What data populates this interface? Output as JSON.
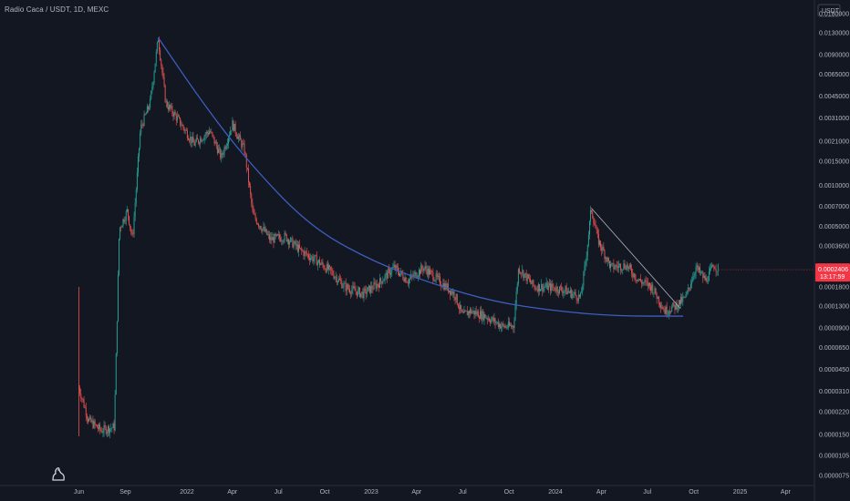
{
  "header": {
    "symbol_title": "Radio Caca / USDT, 1D, MEXC"
  },
  "price_axis": {
    "currency": "USDT",
    "current_price": "0.0002406",
    "countdown": "13:17:59"
  },
  "colors": {
    "background": "#131722",
    "up": "#26a69a",
    "down": "#ef5350",
    "price_tag": "#f23645",
    "curve": "#3d5fbf",
    "trendline": "#b2b5be"
  },
  "chart_data": {
    "type": "candlestick",
    "scale": "log",
    "y_ticks": [
      "0.0180000",
      "0.0130000",
      "0.0090000",
      "0.0065000",
      "0.0045000",
      "0.0031000",
      "0.0021000",
      "0.0015000",
      "0.0010000",
      "0.0007000",
      "0.0005000",
      "0.0003600",
      "0.0002406",
      "0.0001800",
      "0.0001300",
      "0.0000900",
      "0.0000650",
      "0.0000450",
      "0.0000310",
      "0.0000220",
      "0.0000150",
      "0.0000105",
      "0.0000075"
    ],
    "x_ticks": [
      "Jun",
      "Sep",
      "2022",
      "Apr",
      "Jul",
      "Oct",
      "2023",
      "Apr",
      "Jul",
      "Oct",
      "2024",
      "Apr",
      "Jul",
      "Oct",
      "2025",
      "Apr"
    ],
    "series": [
      {
        "values": [
          {
            "t": "2021-06-01",
            "v": 3.3e-05
          },
          {
            "t": "2021-06-20",
            "v": 1.9e-05
          },
          {
            "t": "2021-07-15",
            "v": 1.6e-05
          },
          {
            "t": "2021-08-10",
            "v": 1.7e-05
          },
          {
            "t": "2021-08-20",
            "v": 0.00048
          },
          {
            "t": "2021-09-05",
            "v": 0.00065
          },
          {
            "t": "2021-09-15",
            "v": 0.0004
          },
          {
            "t": "2021-10-01",
            "v": 0.0026
          },
          {
            "t": "2021-10-20",
            "v": 0.004
          },
          {
            "t": "2021-11-05",
            "v": 0.012
          },
          {
            "t": "2021-11-20",
            "v": 0.004
          },
          {
            "t": "2021-12-15",
            "v": 0.003
          },
          {
            "t": "2022-01-15",
            "v": 0.002
          },
          {
            "t": "2022-02-15",
            "v": 0.0025
          },
          {
            "t": "2022-03-10",
            "v": 0.0016
          },
          {
            "t": "2022-04-01",
            "v": 0.0028
          },
          {
            "t": "2022-04-25",
            "v": 0.0018
          },
          {
            "t": "2022-05-12",
            "v": 0.0006
          },
          {
            "t": "2022-06-15",
            "v": 0.0004
          },
          {
            "t": "2022-07-15",
            "v": 0.00042
          },
          {
            "t": "2022-08-15",
            "v": 0.00033
          },
          {
            "t": "2022-09-15",
            "v": 0.00028
          },
          {
            "t": "2022-10-15",
            "v": 0.00023
          },
          {
            "t": "2022-11-10",
            "v": 0.00018
          },
          {
            "t": "2022-12-15",
            "v": 0.00016
          },
          {
            "t": "2023-01-15",
            "v": 0.00019
          },
          {
            "t": "2023-02-15",
            "v": 0.00025
          },
          {
            "t": "2023-03-15",
            "v": 0.0002
          },
          {
            "t": "2023-04-15",
            "v": 0.00025
          },
          {
            "t": "2023-05-15",
            "v": 0.0002
          },
          {
            "t": "2023-06-15",
            "v": 0.00016
          },
          {
            "t": "2023-07-01",
            "v": 0.00011
          },
          {
            "t": "2023-07-15",
            "v": 0.00012
          },
          {
            "t": "2023-08-15",
            "v": 0.00011
          },
          {
            "t": "2023-09-20",
            "v": 9.2e-05
          },
          {
            "t": "2023-10-10",
            "v": 9.3e-05
          },
          {
            "t": "2023-10-20",
            "v": 0.00025
          },
          {
            "t": "2023-11-20",
            "v": 0.00018
          },
          {
            "t": "2023-12-20",
            "v": 0.00018
          },
          {
            "t": "2024-01-20",
            "v": 0.00017
          },
          {
            "t": "2024-02-20",
            "v": 0.00015
          },
          {
            "t": "2024-03-01",
            "v": 0.00028
          },
          {
            "t": "2024-03-12",
            "v": 0.00068
          },
          {
            "t": "2024-03-25",
            "v": 0.0004
          },
          {
            "t": "2024-04-20",
            "v": 0.00025
          },
          {
            "t": "2024-05-20",
            "v": 0.00026
          },
          {
            "t": "2024-06-15",
            "v": 0.0002
          },
          {
            "t": "2024-07-10",
            "v": 0.00018
          },
          {
            "t": "2024-08-05",
            "v": 0.00012
          },
          {
            "t": "2024-08-25",
            "v": 0.00013
          },
          {
            "t": "2024-09-15",
            "v": 0.00015
          },
          {
            "t": "2024-10-05",
            "v": 0.00025
          },
          {
            "t": "2024-10-25",
            "v": 0.0002
          },
          {
            "t": "2024-11-10",
            "v": 0.00026
          },
          {
            "t": "2024-11-20",
            "v": 0.0002406
          }
        ]
      }
    ],
    "drawings": {
      "curve_points": [
        {
          "t": "2021-11-05",
          "v": 0.012
        },
        {
          "t": "2022-02-01",
          "v": 0.004
        },
        {
          "t": "2022-05-01",
          "v": 0.0015
        },
        {
          "t": "2022-09-01",
          "v": 0.0005
        },
        {
          "t": "2023-01-01",
          "v": 0.00028
        },
        {
          "t": "2023-05-01",
          "v": 0.00019
        },
        {
          "t": "2023-09-01",
          "v": 0.00014
        },
        {
          "t": "2024-01-01",
          "v": 0.00012
        },
        {
          "t": "2024-05-01",
          "v": 0.00011
        },
        {
          "t": "2024-09-10",
          "v": 0.00011
        }
      ],
      "trendline": [
        {
          "t": "2024-03-12",
          "v": 0.00068
        },
        {
          "t": "2024-09-05",
          "v": 0.000125
        }
      ]
    }
  }
}
